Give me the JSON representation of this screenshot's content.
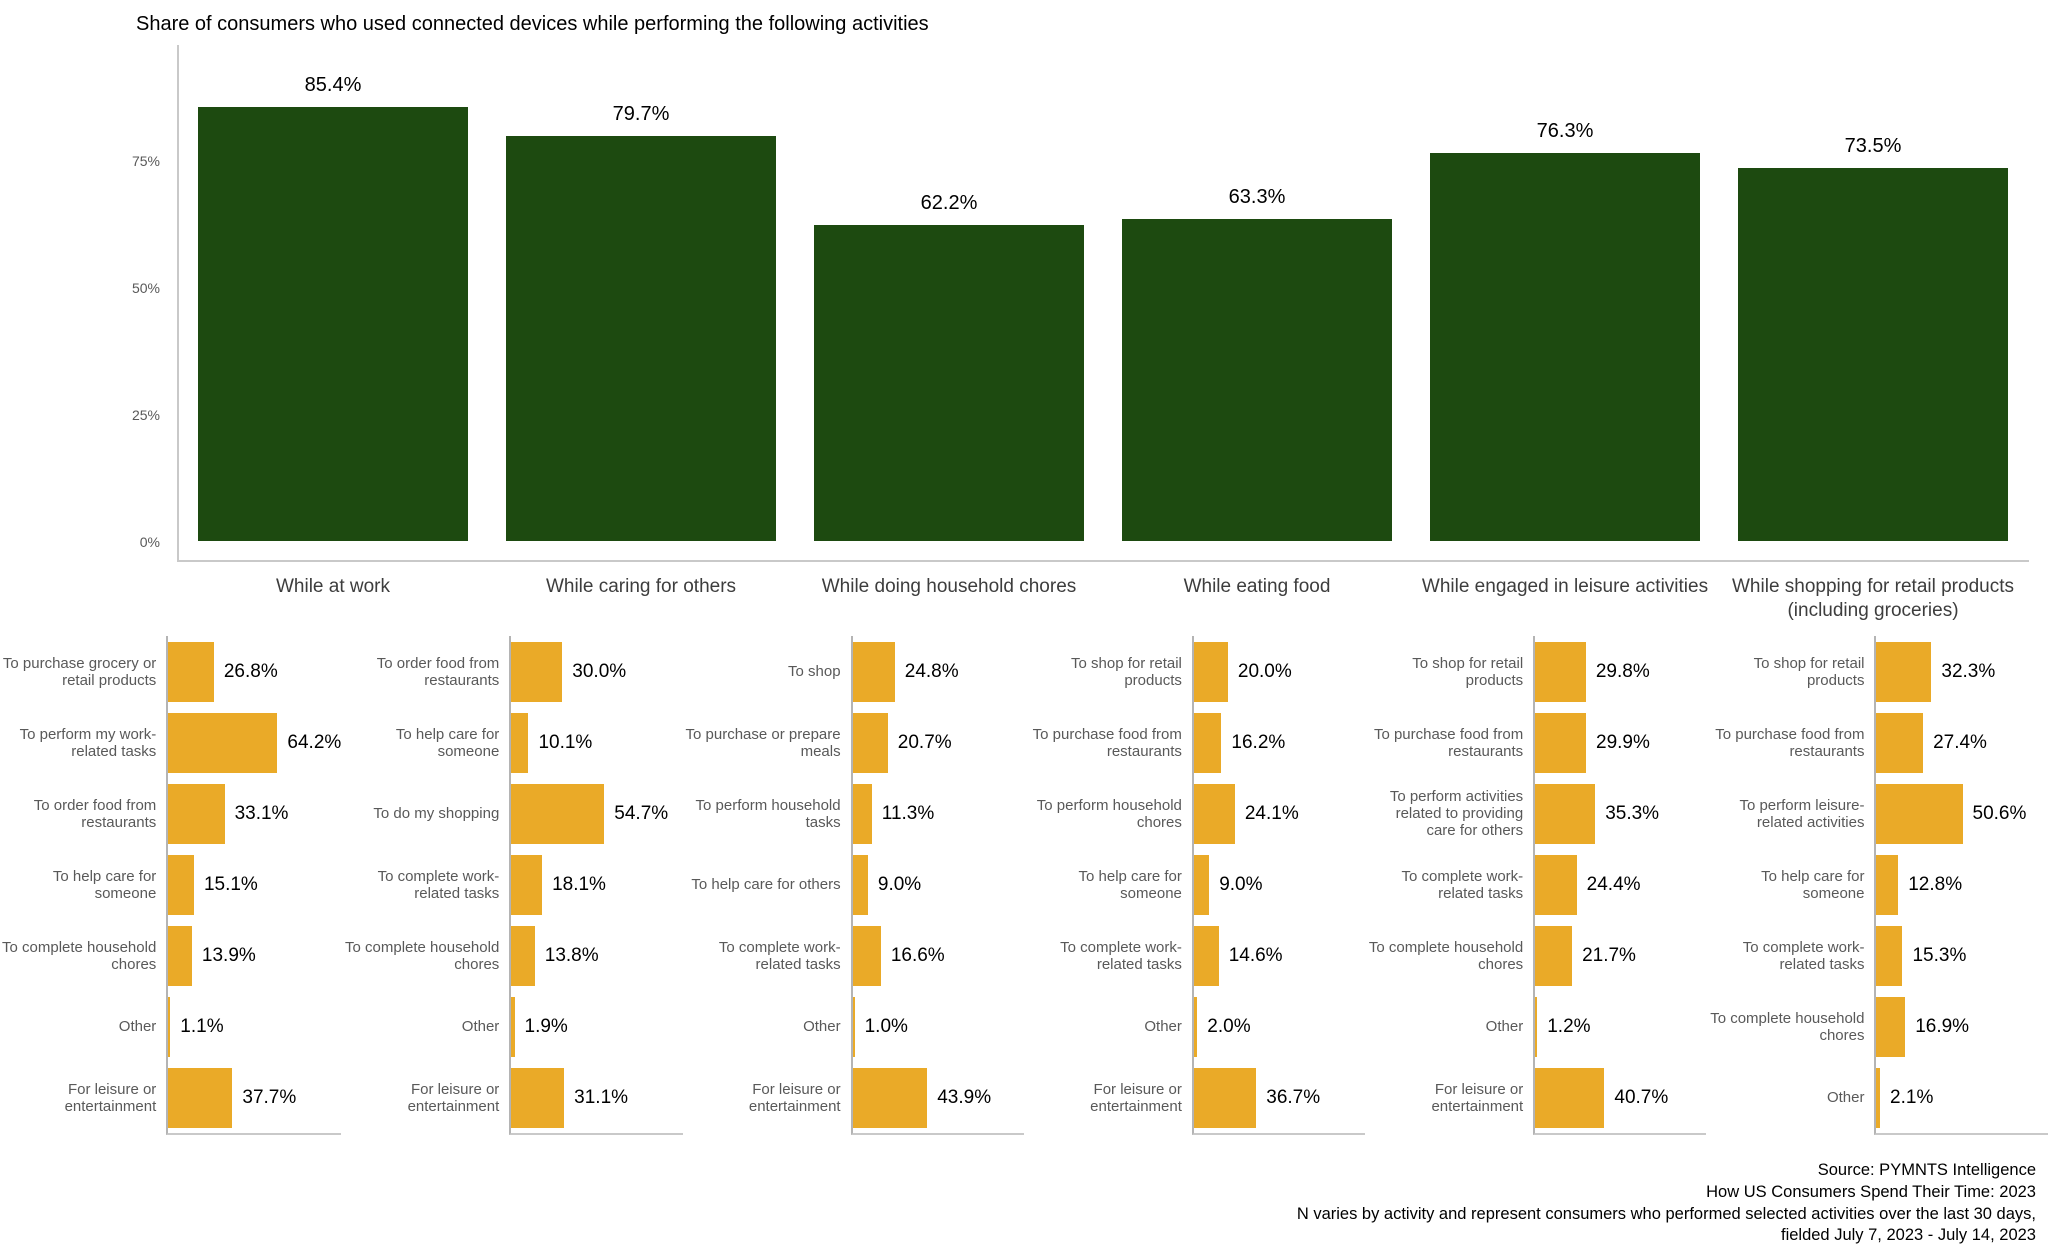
{
  "title": "Share of consumers who used connected devices while performing the following activities",
  "colors": {
    "bar_green": "#1d4a10",
    "bar_orange": "#eaaa28",
    "axis_gray": "#c9c9c9",
    "sub_axis_gray": "#b4b4b4",
    "label_gray": "#595959"
  },
  "footer": {
    "lines": [
      "Source: PYMNTS Intelligence",
      "How US Consumers Spend Their Time: 2023",
      "N varies by activity and represent consumers who performed selected activities over the last 30 days,",
      "fielded July 7, 2023 - July 14, 2023"
    ]
  },
  "chart_data": [
    {
      "id": "main",
      "type": "bar",
      "title": "Share of consumers who used connected devices while performing the following activities",
      "categories": [
        "While at work",
        "While caring for others",
        "While doing household chores",
        "While eating food",
        "While engaged in leisure activities",
        "While shopping for retail products (including groceries)"
      ],
      "values": [
        85.4,
        79.7,
        62.2,
        63.3,
        76.3,
        73.5
      ],
      "labels": [
        "85.4%",
        "79.7%",
        "62.2%",
        "63.3%",
        "76.3%",
        "73.5%"
      ],
      "y_ticks": [
        "0%",
        "25%",
        "50%",
        "75%"
      ],
      "y_tick_values": [
        0,
        25,
        50,
        75
      ],
      "ylim": [
        0,
        97
      ],
      "grid": false,
      "legend": "none",
      "bar_color": "#1d4a10"
    },
    {
      "id": "while-at-work",
      "type": "bar-horizontal",
      "parent_category": "While at work",
      "categories": [
        "To purchase grocery or retail products",
        "To perform my work-related tasks",
        "To order food from restaurants",
        "To help care for someone",
        "To complete household chores",
        "Other",
        "For leisure or entertainment"
      ],
      "values": [
        26.8,
        64.2,
        33.1,
        15.1,
        13.9,
        1.1,
        37.7
      ],
      "labels": [
        "26.8%",
        "64.2%",
        "33.1%",
        "15.1%",
        "13.9%",
        "1.1%",
        "37.7%"
      ],
      "bar_color": "#eaaa28"
    },
    {
      "id": "while-caring-for-others",
      "type": "bar-horizontal",
      "parent_category": "While caring for others",
      "categories": [
        "To order food from restaurants",
        "To help care for someone",
        "To do my shopping",
        "To complete work-related tasks",
        "To complete household chores",
        "Other",
        "For leisure or entertainment"
      ],
      "values": [
        30.0,
        10.1,
        54.7,
        18.1,
        13.8,
        1.9,
        31.1
      ],
      "labels": [
        "30.0%",
        "10.1%",
        "54.7%",
        "18.1%",
        "13.8%",
        "1.9%",
        "31.1%"
      ],
      "bar_color": "#eaaa28"
    },
    {
      "id": "while-doing-household-chores",
      "type": "bar-horizontal",
      "parent_category": "While doing household chores",
      "categories": [
        "To shop",
        "To purchase or prepare meals",
        "To perform household tasks",
        "To help care for others",
        "To complete work-related tasks",
        "Other",
        "For leisure or entertainment"
      ],
      "values": [
        24.8,
        20.7,
        11.3,
        9.0,
        16.6,
        1.0,
        43.9
      ],
      "labels": [
        "24.8%",
        "20.7%",
        "11.3%",
        "9.0%",
        "16.6%",
        "1.0%",
        "43.9%"
      ],
      "bar_color": "#eaaa28"
    },
    {
      "id": "while-eating-food",
      "type": "bar-horizontal",
      "parent_category": "While eating food",
      "categories": [
        "To shop for retail products",
        "To purchase food from restaurants",
        "To perform household chores",
        "To help care for someone",
        "To complete work-related tasks",
        "Other",
        "For leisure or entertainment"
      ],
      "values": [
        20.0,
        16.2,
        24.1,
        9.0,
        14.6,
        2.0,
        36.7
      ],
      "labels": [
        "20.0%",
        "16.2%",
        "24.1%",
        "9.0%",
        "14.6%",
        "2.0%",
        "36.7%"
      ],
      "bar_color": "#eaaa28"
    },
    {
      "id": "while-engaged-in-leisure-activities",
      "type": "bar-horizontal",
      "parent_category": "While engaged in leisure activities",
      "categories": [
        "To shop for retail products",
        "To purchase food from restaurants",
        "To perform activities related to providing care for others",
        "To complete work-related tasks",
        "To complete household chores",
        "Other",
        "For leisure or entertainment"
      ],
      "values": [
        29.8,
        29.9,
        35.3,
        24.4,
        21.7,
        1.2,
        40.7
      ],
      "labels": [
        "29.8%",
        "29.9%",
        "35.3%",
        "24.4%",
        "21.7%",
        "1.2%",
        "40.7%"
      ],
      "bar_color": "#eaaa28"
    },
    {
      "id": "while-shopping-for-retail-products",
      "type": "bar-horizontal",
      "parent_category": "While shopping for retail products (including groceries)",
      "categories": [
        "To shop for retail products",
        "To purchase food from restaurants",
        "To perform leisure-related activities",
        "To help care for someone",
        "To complete work-related tasks",
        "To complete household chores",
        "Other"
      ],
      "values": [
        32.3,
        27.4,
        50.6,
        12.8,
        15.3,
        16.9,
        2.1
      ],
      "labels": [
        "32.3%",
        "27.4%",
        "50.6%",
        "12.8%",
        "15.3%",
        "16.9%",
        "2.1%"
      ],
      "bar_color": "#eaaa28"
    }
  ]
}
